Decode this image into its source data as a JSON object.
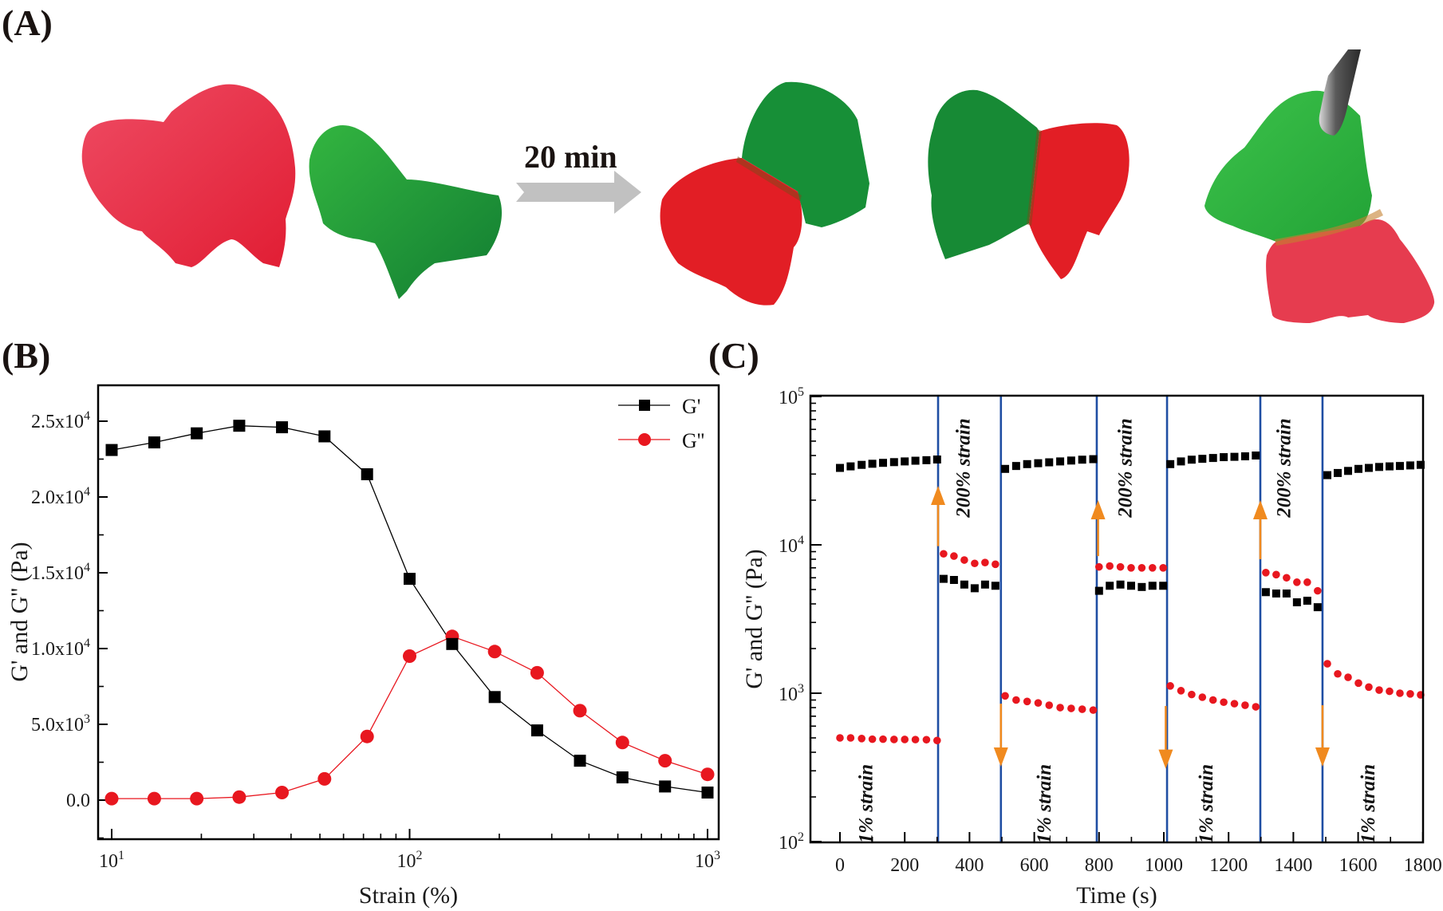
{
  "panels": {
    "a": {
      "label": "(A)",
      "arrow_text": "20 min",
      "photos": [
        {
          "name": "red-hydrogel-piece",
          "color": "#e8334a"
        },
        {
          "name": "green-hydrogel-piece",
          "color": "#1f9a3a"
        },
        {
          "name": "healed-hydrogel-1",
          "colors": [
            "#e51f27",
            "#178f37"
          ]
        },
        {
          "name": "healed-hydrogel-2",
          "colors": [
            "#178a35",
            "#e21e25"
          ]
        },
        {
          "name": "healed-hydrogel-lifted",
          "colors": [
            "#2db23a",
            "#e63c4f"
          ],
          "tool": "tweezers"
        }
      ]
    },
    "b": {
      "label": "(B)"
    },
    "c": {
      "label": "(C)"
    }
  },
  "colors": {
    "gprime": "#000000",
    "gdoubleprime": "#e8171f",
    "step_line": "#1f4ea3",
    "arrow": "#f08a1f",
    "time_arrow": "#c0c0c0"
  },
  "chart_data": [
    {
      "id": "B",
      "type": "line",
      "title": "",
      "xlabel": "Strain (%)",
      "ylabel": "G' and G'' (Pa)",
      "xscale": "log",
      "xlim": [
        9,
        1050
      ],
      "ylim": [
        -2500,
        27500
      ],
      "xticks": [
        {
          "value": 10,
          "label_base": "10",
          "label_exp": "1"
        },
        {
          "value": 100,
          "label_base": "10",
          "label_exp": "2"
        },
        {
          "value": 1000,
          "label_base": "10",
          "label_exp": "3"
        }
      ],
      "yticks": [
        {
          "value": 0,
          "label": "0.0",
          "exp": ""
        },
        {
          "value": 5000,
          "label": "5.0x10",
          "exp": "3"
        },
        {
          "value": 10000,
          "label": "1.0x10",
          "exp": "4"
        },
        {
          "value": 15000,
          "label": "1.5x10",
          "exp": "4"
        },
        {
          "value": 20000,
          "label": "2.0x10",
          "exp": "4"
        },
        {
          "value": 25000,
          "label": "2.5x10",
          "exp": "4"
        }
      ],
      "legend_position": "top-right",
      "grid": false,
      "x": [
        10,
        13.9,
        19.3,
        26.8,
        37.3,
        51.8,
        72,
        100,
        139,
        193,
        268,
        373,
        518,
        720,
        1000
      ],
      "series": [
        {
          "name": "G'",
          "marker": "square",
          "color": "#000000",
          "values": [
            23100,
            23600,
            24200,
            24700,
            24600,
            24000,
            21500,
            14600,
            10300,
            6800,
            4600,
            2600,
            1500,
            900,
            500
          ]
        },
        {
          "name": "G''",
          "marker": "circle",
          "color": "#e8171f",
          "values": [
            100,
            100,
            100,
            200,
            500,
            1400,
            4200,
            9500,
            10800,
            9800,
            8400,
            5900,
            3800,
            2600,
            1700
          ]
        }
      ]
    },
    {
      "id": "C",
      "type": "scatter",
      "title": "",
      "xlabel": "Time (s)",
      "ylabel": "G' and G'' (Pa)",
      "yscale": "log",
      "xlim": [
        -90,
        1800
      ],
      "ylim": [
        100,
        100000
      ],
      "xticks": [
        0,
        200,
        400,
        600,
        800,
        1000,
        1200,
        1400,
        1600,
        1800
      ],
      "yticks": [
        {
          "value": 100,
          "label_base": "10",
          "label_exp": "2"
        },
        {
          "value": 1000,
          "label_base": "10",
          "label_exp": "3"
        },
        {
          "value": 10000,
          "label_base": "10",
          "label_exp": "4"
        },
        {
          "value": 100000,
          "label_base": "10",
          "label_exp": "5"
        }
      ],
      "grid": false,
      "step_lines": [
        303,
        497,
        793,
        1010,
        1298,
        1490
      ],
      "arrows": [
        {
          "x": 303,
          "direction": "up",
          "from": 9800,
          "to": 25000
        },
        {
          "x": 797,
          "direction": "up",
          "from": 8400,
          "to": 20000
        },
        {
          "x": 1298,
          "direction": "up",
          "from": 8000,
          "to": 20000
        },
        {
          "x": 497,
          "direction": "down",
          "from": 850,
          "to": 320
        },
        {
          "x": 1006,
          "direction": "down",
          "from": 820,
          "to": 310
        },
        {
          "x": 1490,
          "direction": "down",
          "from": 830,
          "to": 320
        }
      ],
      "annotations": [
        {
          "text": "1% strain",
          "x": 100,
          "y": 180
        },
        {
          "text": "200% strain",
          "x": 400,
          "y": 33000
        },
        {
          "text": "1% strain",
          "x": 650,
          "y": 180
        },
        {
          "text": "200% strain",
          "x": 900,
          "y": 33000
        },
        {
          "text": "1% strain",
          "x": 1150,
          "y": 180
        },
        {
          "text": "200% strain",
          "x": 1390,
          "y": 33000
        },
        {
          "text": "1% strain",
          "x": 1650,
          "y": 180
        }
      ],
      "series": [
        {
          "name": "G'",
          "marker": "square",
          "color": "#000000",
          "segments": [
            {
              "x": [
                0,
                33,
                67,
                100,
                133,
                167,
                200,
                233,
                267,
                300
              ],
              "values": [
                33000,
                33800,
                34600,
                35200,
                35700,
                36100,
                36500,
                36900,
                37200,
                37600
              ]
            },
            {
              "x": [
                320,
                352,
                384,
                416,
                448,
                480
              ],
              "values": [
                5900,
                5800,
                5400,
                5100,
                5400,
                5300
              ]
            },
            {
              "x": [
                510,
                544,
                578,
                612,
                646,
                680,
                714,
                748,
                782
              ],
              "values": [
                32500,
                34000,
                35000,
                35500,
                36000,
                36500,
                37000,
                37500,
                37800
              ]
            },
            {
              "x": [
                800,
                833,
                866,
                899,
                932,
                965,
                998
              ],
              "values": [
                4900,
                5300,
                5400,
                5300,
                5200,
                5300,
                5300
              ]
            },
            {
              "x": [
                1020,
                1053,
                1086,
                1119,
                1152,
                1185,
                1218,
                1251,
                1284
              ],
              "values": [
                35000,
                36500,
                37500,
                38000,
                38500,
                39000,
                39200,
                39500,
                40000
              ]
            },
            {
              "x": [
                1315,
                1347,
                1379,
                1411,
                1443,
                1475
              ],
              "values": [
                4800,
                4700,
                4700,
                4100,
                4200,
                3800
              ]
            },
            {
              "x": [
                1505,
                1537,
                1569,
                1601,
                1633,
                1665,
                1697,
                1729,
                1761,
                1793
              ],
              "values": [
                29500,
                30500,
                31500,
                32500,
                33000,
                33500,
                33800,
                34000,
                34300,
                34600
              ]
            }
          ]
        },
        {
          "name": "G''",
          "marker": "circle",
          "color": "#e8171f",
          "segments": [
            {
              "x": [
                0,
                33,
                67,
                100,
                133,
                167,
                200,
                233,
                267,
                300
              ],
              "values": [
                500,
                500,
                495,
                490,
                490,
                488,
                488,
                487,
                486,
                480
              ]
            },
            {
              "x": [
                320,
                352,
                384,
                416,
                448,
                480
              ],
              "values": [
                8700,
                8400,
                7900,
                7500,
                7600,
                7400
              ]
            },
            {
              "x": [
                510,
                544,
                578,
                612,
                646,
                680,
                714,
                748,
                782
              ],
              "values": [
                960,
                900,
                880,
                860,
                830,
                800,
                790,
                780,
                770
              ]
            },
            {
              "x": [
                800,
                833,
                866,
                899,
                932,
                965,
                998
              ],
              "values": [
                7100,
                7200,
                7100,
                7000,
                7000,
                7000,
                7000
              ]
            },
            {
              "x": [
                1020,
                1053,
                1086,
                1119,
                1152,
                1185,
                1218,
                1251,
                1284
              ],
              "values": [
                1120,
                1040,
                980,
                940,
                900,
                870,
                850,
                830,
                810
              ]
            },
            {
              "x": [
                1315,
                1347,
                1379,
                1411,
                1443,
                1475
              ],
              "values": [
                6500,
                6300,
                6000,
                5600,
                5600,
                4900
              ]
            },
            {
              "x": [
                1505,
                1537,
                1569,
                1601,
                1633,
                1665,
                1697,
                1729,
                1761,
                1793
              ],
              "values": [
                1580,
                1350,
                1280,
                1170,
                1100,
                1050,
                1030,
                1000,
                990,
                975
              ]
            }
          ]
        }
      ]
    }
  ]
}
